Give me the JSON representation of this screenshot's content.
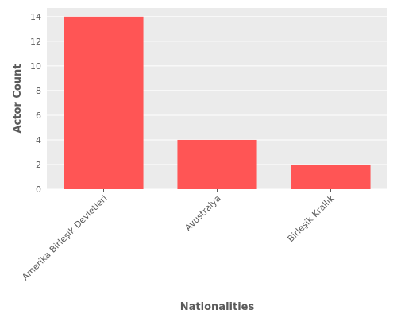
{
  "chart_data": {
    "type": "bar",
    "categories": [
      "Amerika Birleşik Devletleri",
      "Avustralya",
      "Birleşik Krallık"
    ],
    "values": [
      14,
      4,
      2
    ],
    "title": "",
    "xlabel": "Nationalities",
    "ylabel": "Actor Count",
    "ylim": [
      0,
      14.7
    ],
    "yticks": [
      0,
      2,
      4,
      6,
      8,
      10,
      12,
      14
    ],
    "grid": true,
    "bar_color": "#ff5555",
    "background_color": "#ebebeb",
    "grid_color": "#ffffff"
  }
}
